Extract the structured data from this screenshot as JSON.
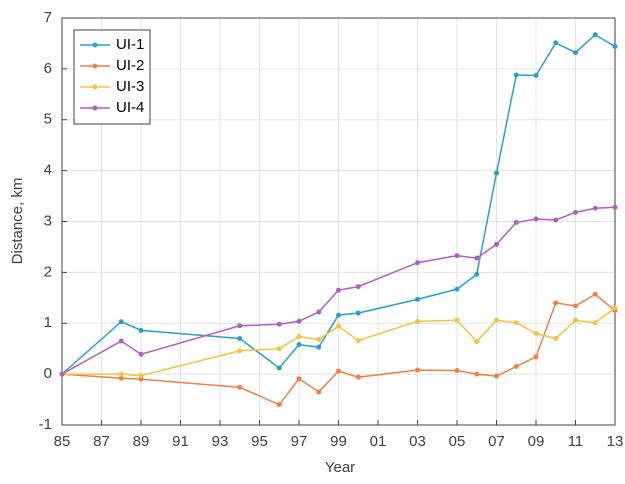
{
  "chart_data": {
    "type": "line",
    "xlabel": "Year",
    "ylabel": "Distance, km",
    "x": [
      1985,
      1988,
      1989,
      1994,
      1996,
      1997,
      1998,
      1999,
      2000,
      2003,
      2005,
      2006,
      2007,
      2008,
      2009,
      2010,
      2011,
      2012,
      2013
    ],
    "series": [
      {
        "name": "UI-1",
        "color": "#2a9fc9",
        "values": [
          0,
          1.03,
          0.86,
          0.7,
          0.12,
          0.58,
          0.53,
          1.16,
          1.2,
          1.47,
          1.67,
          1.96,
          3.95,
          5.88,
          5.87,
          6.51,
          6.32,
          6.67,
          6.44
        ]
      },
      {
        "name": "UI-2",
        "color": "#f07f48",
        "values": [
          0,
          -0.08,
          -0.1,
          -0.26,
          -0.6,
          -0.09,
          -0.35,
          0.06,
          -0.06,
          0.08,
          0.07,
          0.0,
          -0.04,
          0.15,
          0.34,
          1.4,
          1.34,
          1.57,
          1.25
        ]
      },
      {
        "name": "UI-3",
        "color": "#f5c242",
        "values": [
          0,
          0,
          -0.03,
          0.46,
          0.5,
          0.74,
          0.68,
          0.94,
          0.66,
          1.04,
          1.06,
          0.64,
          1.06,
          1.01,
          0.8,
          0.7,
          1.06,
          1.01,
          1.3
        ]
      },
      {
        "name": "UI-4",
        "color": "#b05fc0",
        "values": [
          0,
          0.65,
          0.39,
          0.95,
          0.98,
          1.04,
          1.22,
          1.65,
          1.72,
          2.19,
          2.33,
          2.28,
          2.55,
          2.98,
          3.05,
          3.03,
          3.18,
          3.26,
          3.28
        ]
      }
    ],
    "xlim": [
      1985,
      2013
    ],
    "xticks": [
      {
        "value": 1985,
        "label": "85"
      },
      {
        "value": 1987,
        "label": "87"
      },
      {
        "value": 1989,
        "label": "89"
      },
      {
        "value": 1991,
        "label": "91"
      },
      {
        "value": 1993,
        "label": "93"
      },
      {
        "value": 1995,
        "label": "95"
      },
      {
        "value": 1997,
        "label": "97"
      },
      {
        "value": 1999,
        "label": "99"
      },
      {
        "value": 2001,
        "label": "01"
      },
      {
        "value": 2003,
        "label": "03"
      },
      {
        "value": 2005,
        "label": "05"
      },
      {
        "value": 2007,
        "label": "07"
      },
      {
        "value": 2009,
        "label": "09"
      },
      {
        "value": 2011,
        "label": "11"
      },
      {
        "value": 2013,
        "label": "13"
      }
    ],
    "ylim": [
      -1,
      7
    ],
    "yticks": [
      -1,
      0,
      1,
      2,
      3,
      4,
      5,
      6,
      7
    ],
    "grid": true,
    "legend": "upper-left"
  }
}
